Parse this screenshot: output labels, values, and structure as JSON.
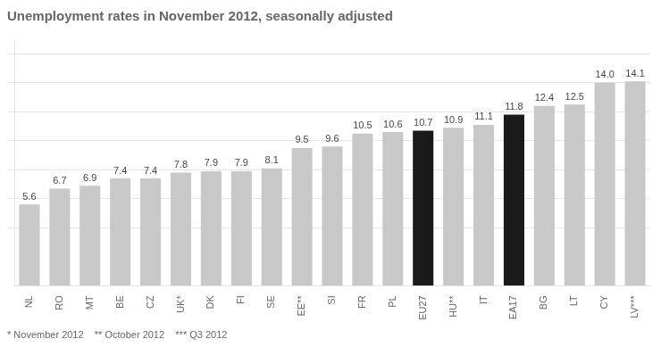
{
  "chart_data": {
    "type": "bar",
    "title": "Unemployment rates in November 2012, seasonally adjusted",
    "annotations": [
      "* November 2012    ** October 2012    *** Q3 2012"
    ],
    "categories": [
      "NL",
      "RO",
      "MT",
      "BE",
      "CZ",
      "UK*",
      "DK",
      "FI",
      "SE",
      "EE**",
      "SI",
      "FR",
      "PL",
      "EU27",
      "HU**",
      "IT",
      "EA17",
      "BG",
      "LT",
      "CY",
      "LV***"
    ],
    "values": [
      5.6,
      6.7,
      6.9,
      7.4,
      7.4,
      7.8,
      7.9,
      7.9,
      8.1,
      9.5,
      9.6,
      10.5,
      10.6,
      10.7,
      10.9,
      11.1,
      11.8,
      12.4,
      12.5,
      14.0,
      14.1
    ],
    "value_labels": [
      "5.6",
      "6.7",
      "6.9",
      "7.4",
      "7.4",
      "7.8",
      "7.9",
      "7.9",
      "8.1",
      "9.5",
      "9.6",
      "10.5",
      "10.6",
      "10.7",
      "10.9",
      "11.1",
      "11.8",
      "12.4",
      "12.5",
      "14.0",
      "14.1"
    ],
    "colors": [
      "#c8c8c8",
      "#c8c8c8",
      "#c8c8c8",
      "#c8c8c8",
      "#c8c8c8",
      "#c8c8c8",
      "#c8c8c8",
      "#c8c8c8",
      "#c8c8c8",
      "#c8c8c8",
      "#c8c8c8",
      "#c8c8c8",
      "#c8c8c8",
      "#1a1a1a",
      "#c8c8c8",
      "#c8c8c8",
      "#1a1a1a",
      "#c8c8c8",
      "#c8c8c8",
      "#c8c8c8",
      "#c8c8c8"
    ],
    "ylim": [
      0,
      17
    ],
    "yticks": [
      4,
      6,
      8,
      10,
      12,
      14,
      16
    ],
    "grid": true,
    "tick_labels": "x",
    "data_labels": true
  }
}
